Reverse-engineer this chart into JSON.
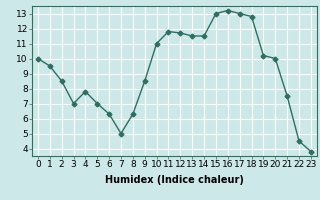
{
  "x": [
    0,
    1,
    2,
    3,
    4,
    5,
    6,
    7,
    8,
    9,
    10,
    11,
    12,
    13,
    14,
    15,
    16,
    17,
    18,
    19,
    20,
    21,
    22,
    23
  ],
  "y": [
    10.0,
    9.5,
    8.5,
    7.0,
    7.8,
    7.0,
    6.3,
    5.0,
    6.3,
    8.5,
    11.0,
    11.8,
    11.7,
    11.5,
    11.5,
    13.0,
    13.2,
    13.0,
    12.8,
    10.2,
    10.0,
    7.5,
    4.5,
    3.8
  ],
  "line_color": "#2d7060",
  "marker": "D",
  "marker_size": 2.5,
  "bg_color": "#cde8e8",
  "grid_color": "#b0d4d4",
  "xlabel": "Humidex (Indice chaleur)",
  "xlim": [
    -0.5,
    23.5
  ],
  "ylim": [
    3.5,
    13.5
  ],
  "yticks": [
    4,
    5,
    6,
    7,
    8,
    9,
    10,
    11,
    12,
    13
  ],
  "xtick_labels": [
    "0",
    "1",
    "2",
    "3",
    "4",
    "5",
    "6",
    "7",
    "8",
    "9",
    "10",
    "11",
    "12",
    "13",
    "14",
    "15",
    "16",
    "17",
    "18",
    "19",
    "20",
    "21",
    "22",
    "23"
  ],
  "xlabel_fontsize": 7,
  "tick_fontsize": 6.5
}
